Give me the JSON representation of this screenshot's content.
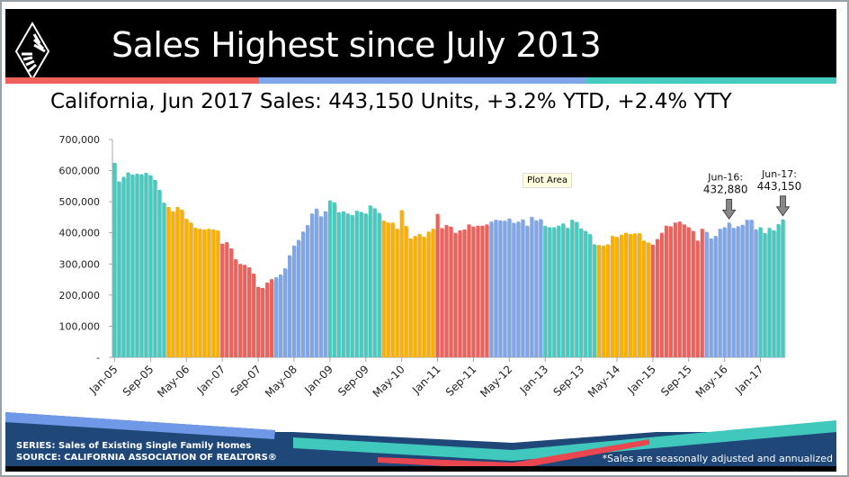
{
  "header": {
    "title": "Sales Highest since July 2013",
    "stripe_colors": [
      "#f0605a",
      "#7fa6e8",
      "#46cbc0"
    ]
  },
  "subtitle": "California, Jun 2017 Sales: 443,150 Units, +3.2% YTD, +2.4% YTY",
  "tooltip": "Plot Area",
  "footer": {
    "series": "SERIES: Sales of Existing Single Family Homes",
    "source": "SOURCE:  CALIFORNIA ASSOCIATION OF REALTORS®",
    "note": "*Sales are seasonally adjusted and annualized"
  },
  "chart_data": {
    "type": "bar",
    "title": "",
    "xlabel": "",
    "ylabel": "",
    "ylim": [
      0,
      700000
    ],
    "yticks": [
      0,
      100000,
      200000,
      300000,
      400000,
      500000,
      600000,
      700000
    ],
    "ytick_labels": [
      "-",
      "100,000",
      "200,000",
      "300,000",
      "400,000",
      "500,000",
      "600,000",
      "700,000"
    ],
    "start": "Jan-05",
    "xtick_labels": [
      "Jan-05",
      "Sep-05",
      "May-06",
      "Jan-07",
      "Sep-07",
      "May-08",
      "Jan-09",
      "Sep-09",
      "May-10",
      "Jan-11",
      "Sep-11",
      "May-12",
      "Jan-13",
      "Sep-13",
      "May-14",
      "Jan-15",
      "Sep-15",
      "May-16",
      "Jan-17"
    ],
    "year_colors": [
      "#46cbc0",
      "#fbb000",
      "#f0605a",
      "#7fa6e8"
    ],
    "years": [
      {
        "year": 2005,
        "values": [
          625000,
          565000,
          580000,
          594000,
          587000,
          590000,
          588000,
          593000,
          585000,
          570000,
          538000,
          497000
        ]
      },
      {
        "year": 2006,
        "values": [
          483000,
          469000,
          483000,
          474000,
          445000,
          433000,
          416000,
          413000,
          411000,
          413000,
          411000,
          408000
        ]
      },
      {
        "year": 2007,
        "values": [
          365000,
          370000,
          350000,
          315000,
          300000,
          297000,
          289000,
          269000,
          226000,
          223000,
          240000,
          251000
        ]
      },
      {
        "year": 2008,
        "values": [
          257000,
          266000,
          286000,
          328000,
          359000,
          377000,
          404000,
          425000,
          462000,
          478000,
          453000,
          469000
        ]
      },
      {
        "year": 2009,
        "values": [
          504000,
          498000,
          466000,
          469000,
          462000,
          457000,
          471000,
          467000,
          462000,
          488000,
          479000,
          464000
        ]
      },
      {
        "year": 2010,
        "values": [
          439000,
          433000,
          433000,
          413000,
          473000,
          422000,
          382000,
          390000,
          396000,
          387000,
          404000,
          413000
        ]
      },
      {
        "year": 2011,
        "values": [
          461000,
          415000,
          425000,
          420000,
          400000,
          408000,
          411000,
          427000,
          420000,
          423000,
          423000,
          427000
        ]
      },
      {
        "year": 2012,
        "values": [
          436000,
          442000,
          440000,
          439000,
          446000,
          432000,
          436000,
          443000,
          423000,
          451000,
          440000,
          444000
        ]
      },
      {
        "year": 2013,
        "values": [
          422000,
          418000,
          418000,
          423000,
          430000,
          416000,
          442000,
          435000,
          414000,
          406000,
          396000,
          363000
        ]
      },
      {
        "year": 2014,
        "values": [
          361000,
          359000,
          363000,
          390000,
          387000,
          394000,
          400000,
          396000,
          398000,
          399000,
          375000,
          369000
        ]
      },
      {
        "year": 2015,
        "values": [
          362000,
          380000,
          400000,
          423000,
          421000,
          433000,
          436000,
          427000,
          418000,
          406000,
          375000,
          413000
        ]
      },
      {
        "year": 2016,
        "values": [
          403000,
          382000,
          390000,
          413000,
          418000,
          432880,
          416000,
          421000,
          426000,
          442000,
          442000,
          411000
        ]
      },
      {
        "year": 2017,
        "values": [
          418000,
          399000,
          416000,
          408000,
          428000,
          443150
        ]
      }
    ],
    "annotations": [
      {
        "index": 137,
        "line1": "Jun-16:",
        "line2": "432,880"
      },
      {
        "index": 149,
        "line1": "Jun-17:",
        "line2": "443,150"
      }
    ]
  }
}
